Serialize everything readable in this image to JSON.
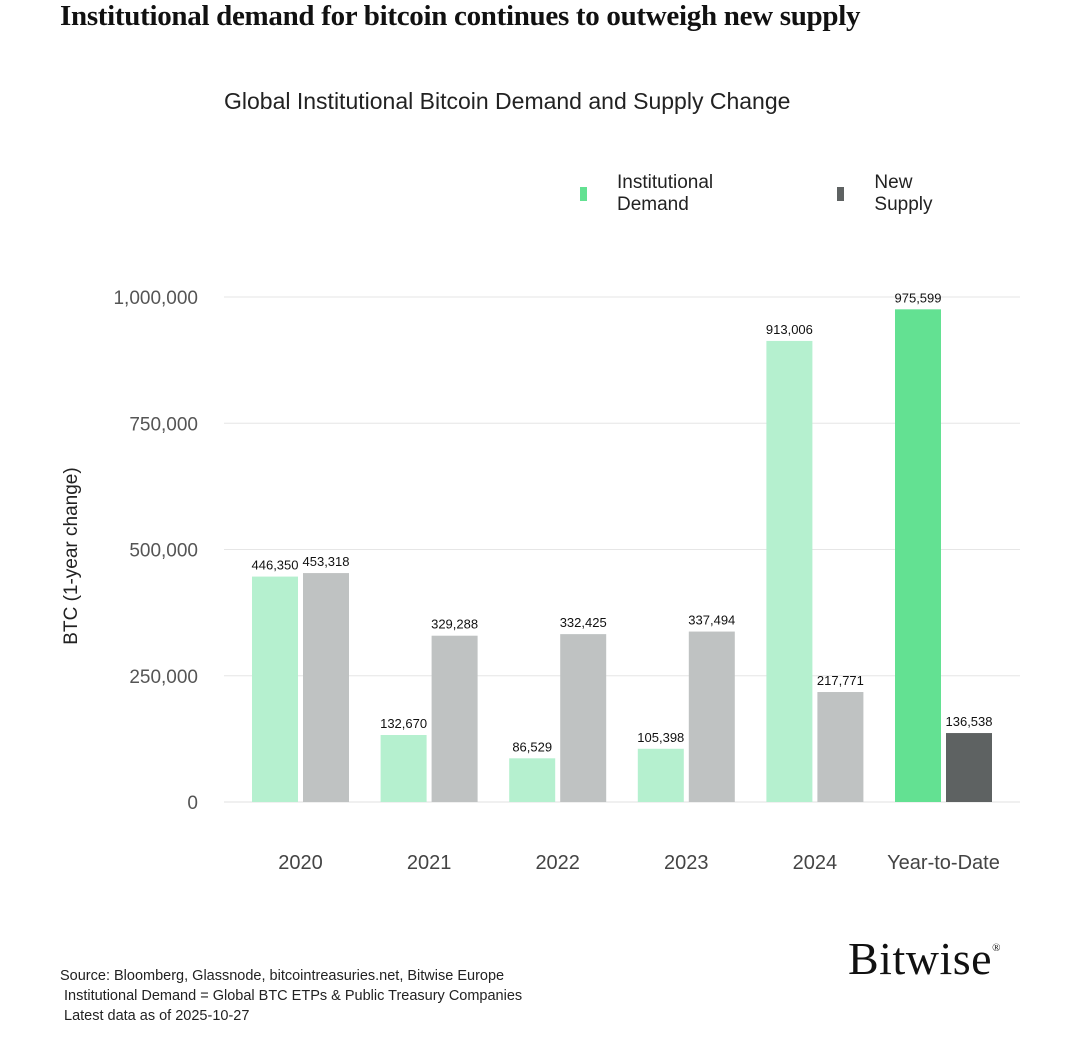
{
  "headline": "Institutional demand for bitcoin continues to outweigh new supply",
  "footnotes": {
    "source": "Source: Bloomberg, Glassnode, bitcointreasuries.net, Bitwise Europe",
    "definition": "Institutional Demand = Global BTC ETPs & Public Treasury Companies",
    "as_of": "Latest data as of 2025-10-27"
  },
  "brand": {
    "name": "Bitwise",
    "mark": "®"
  },
  "chart_data": {
    "type": "bar",
    "title": "Global Institutional Bitcoin Demand and Supply Change",
    "ylabel": "BTC (1-year change)",
    "xlabel": "",
    "ylim": [
      0,
      1000000
    ],
    "yticks": [
      {
        "value": 0,
        "label": "0"
      },
      {
        "value": 250000,
        "label": "250,000"
      },
      {
        "value": 500000,
        "label": "500,000"
      },
      {
        "value": 750000,
        "label": "750,000"
      },
      {
        "value": 1000000,
        "label": "1,000,000"
      }
    ],
    "grid": true,
    "legend_position": "top-right",
    "categories": [
      "2020",
      "2021",
      "2022",
      "2023",
      "2024",
      "Year-to-Date"
    ],
    "series": [
      {
        "name": "Institutional Demand",
        "color": "#b5f0cf",
        "highlight_color": "#63e192",
        "values": [
          446350,
          132670,
          86529,
          105398,
          913006,
          975599
        ],
        "labels": [
          "446,350",
          "132,670",
          "86,529",
          "105,398",
          "913,006",
          "975,599"
        ]
      },
      {
        "name": "New Supply",
        "color": "#bfc2c2",
        "highlight_color": "#5e6262",
        "values": [
          453318,
          329288,
          332425,
          337494,
          217771,
          136538
        ],
        "labels": [
          "453,318",
          "329,288",
          "332,425",
          "337,494",
          "217,771",
          "136,538"
        ]
      }
    ],
    "legend_colors": [
      "#63e192",
      "#5e6262"
    ]
  }
}
